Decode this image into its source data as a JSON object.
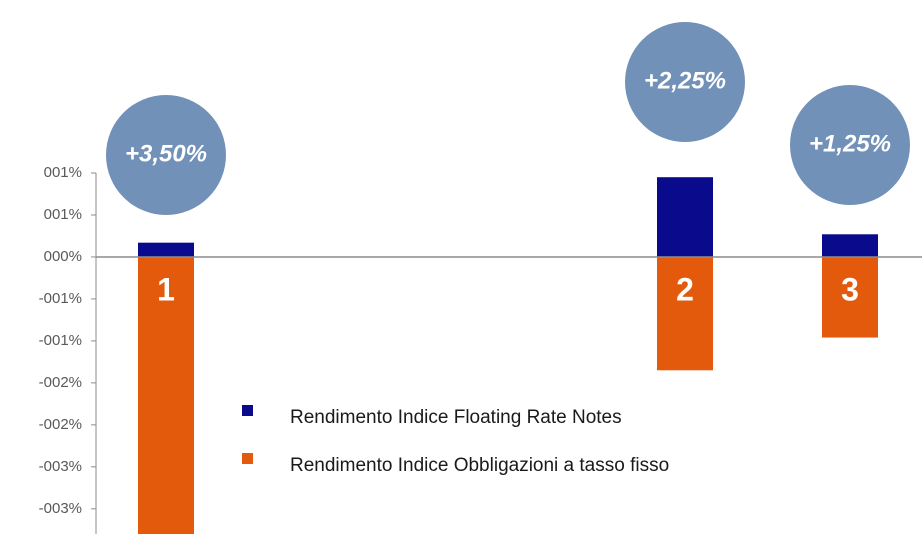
{
  "chart_data": {
    "type": "bar",
    "categories": [
      "1",
      "2",
      "3"
    ],
    "annotations": [
      "+3,50%",
      "+2,25%",
      "+1,25%"
    ],
    "series": [
      {
        "name": "Rendimento Indice Floating Rate Notes",
        "color": "#0a0a8c",
        "values": [
          0.17,
          0.95,
          0.27
        ]
      },
      {
        "name": "Rendimento Indice Obbligazioni a tasso fisso",
        "color": "#e35a0c",
        "values": [
          -3.3,
          -1.35,
          -0.96
        ]
      }
    ],
    "ylim": [
      -3.3,
      1.0
    ],
    "yticks": [
      {
        "value": 1.0,
        "label": "001%"
      },
      {
        "value": 0.5,
        "label": "001%"
      },
      {
        "value": 0,
        "label": "000%"
      },
      {
        "value": -0.5,
        "label": "-001%"
      },
      {
        "value": -1.0,
        "label": "-001%"
      },
      {
        "value": -1.5,
        "label": "-002%"
      },
      {
        "value": -2.0,
        "label": "-002%"
      },
      {
        "value": -2.5,
        "label": "-003%"
      },
      {
        "value": -3.0,
        "label": "-003%"
      }
    ],
    "bubble_color": "#7191b8"
  }
}
